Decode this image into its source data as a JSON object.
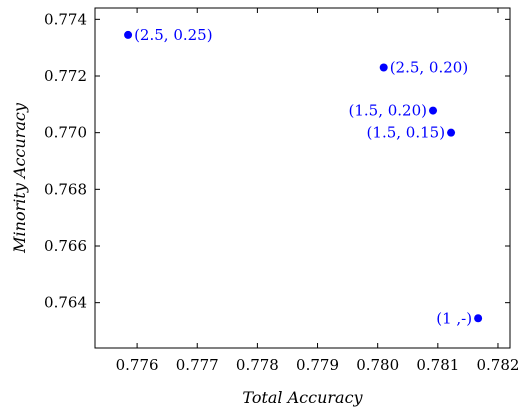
{
  "chart_data": {
    "type": "scatter",
    "xlabel": "Total Accuracy",
    "ylabel": "Minority Accuracy",
    "xlim": [
      0.7753,
      0.7822
    ],
    "ylim": [
      0.7624,
      0.7744
    ],
    "x_ticks": [
      "0.776",
      "0.777",
      "0.778",
      "0.779",
      "0.780",
      "0.781",
      "0.782"
    ],
    "y_ticks": [
      "0.764",
      "0.766",
      "0.768",
      "0.770",
      "0.772",
      "0.774"
    ],
    "grid": false,
    "marker_color": "#0000ff",
    "points": [
      {
        "x": 0.77585,
        "y": 0.77345,
        "label": "(2.5, 0.25)",
        "label_side": "right"
      },
      {
        "x": 0.7801,
        "y": 0.7723,
        "label": "(2.5, 0.20)",
        "label_side": "right"
      },
      {
        "x": 0.78092,
        "y": 0.77078,
        "label": "(1.5, 0.20)",
        "label_side": "left"
      },
      {
        "x": 0.78122,
        "y": 0.77,
        "label": "(1.5, 0.15)",
        "label_side": "left"
      },
      {
        "x": 0.78167,
        "y": 0.76345,
        "label": "(1 ,-)",
        "label_side": "left"
      }
    ]
  }
}
